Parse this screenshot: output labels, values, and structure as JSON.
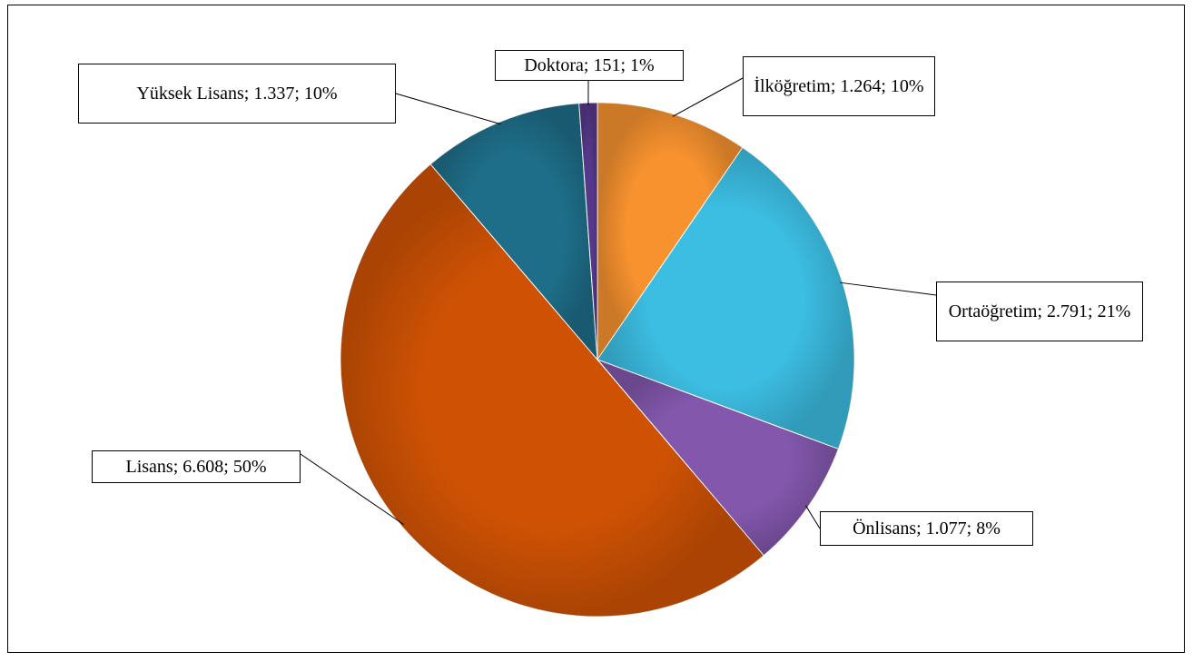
{
  "chart_data": {
    "type": "pie",
    "categories": [
      "İlköğretim",
      "Ortaöğretim",
      "Önlisans",
      "Lisans",
      "Yüksek Lisans",
      "Doktora"
    ],
    "values": [
      1264,
      2791,
      1077,
      6608,
      1337,
      151
    ],
    "value_labels": [
      "İlköğretim; 1.264; 10%",
      "Ortaöğretim; 2.791; 21%",
      "Önlisans; 1.077; 8%",
      "Lisans; 6.608; 50%",
      "Yüksek Lisans; 1.337; 10%",
      "Doktora; 151; 1%"
    ],
    "colors": [
      "#f7922f",
      "#3cbde2",
      "#8257ac",
      "#cf5204",
      "#1e6e89",
      "#55388a"
    ]
  }
}
